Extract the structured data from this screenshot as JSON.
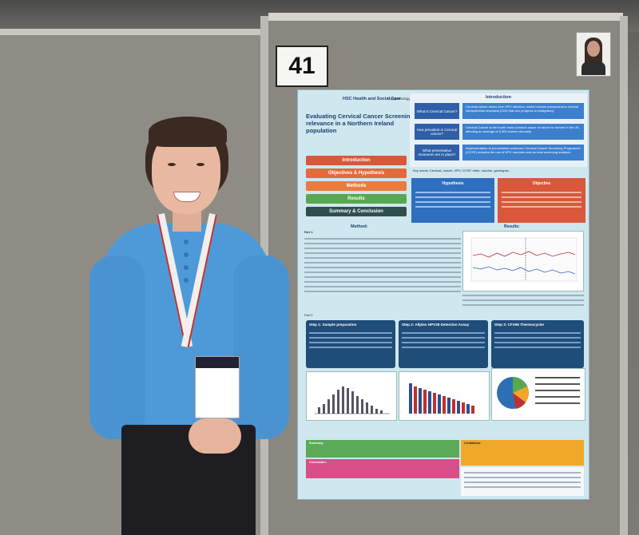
{
  "scene": {
    "board_number": "41",
    "colors": {
      "sweater": "#4e9ad8",
      "poster_bg": "#cfe7ef",
      "board": "#8a8781"
    }
  },
  "poster": {
    "title": "Evaluating Cervical Cancer Screening relevance in a Northern Ireland population",
    "logo_text": "HSC Health and Social Care",
    "tag": "Cytopathology 41",
    "menu": [
      "Introduction",
      "Objectives & Hypothesis",
      "Methods",
      "Results",
      "Summary & Conclusion"
    ],
    "menu_colors": [
      "#d9573a",
      "#e36a3a",
      "#ea7c3c",
      "#58a84f",
      "#2f4f4f"
    ],
    "intro": {
      "heading": "Introduction",
      "rows": [
        {
          "q": "What is Cervical Cancer?",
          "a": "Cervical cancer arises from HPV infection, which induces precancerous cervical intraepithelial neoplasia (CIN) that can progress to malignancy."
        },
        {
          "q": "How prevalent is Cervical cancer?",
          "a": "Cervical Cancer is the fourth most common cause of cancer in women in the UK, affecting an average of 3,300 women annually."
        },
        {
          "q": "What preventative measures are in place?",
          "a": "Implementation of preventative schemes: Cervical Cancer Screening Programme (CCSP) includes the use of HPV vaccines and cervical screening analysis."
        }
      ]
    },
    "keywords": "Key words: Cervical, cancer, HPV, CCSP, other, vaccine, genotypes",
    "hypothesis": {
      "title": "Hypothesis"
    },
    "objective": {
      "title": "Objective"
    },
    "results_label": "Results:",
    "methods_label": "Method:",
    "part1": "Part 1:",
    "part2": "Part 2:",
    "steps": [
      {
        "title": "Step 1: Sample preparation"
      },
      {
        "title": "Step 2: Allplex HPV28 Detection Assay"
      },
      {
        "title": "Step 3: CFX96 Thermocycler"
      }
    ],
    "summary_label": "Summary:",
    "limitations_label": "Limitations:",
    "conclusion_label": "Conclusion:"
  }
}
